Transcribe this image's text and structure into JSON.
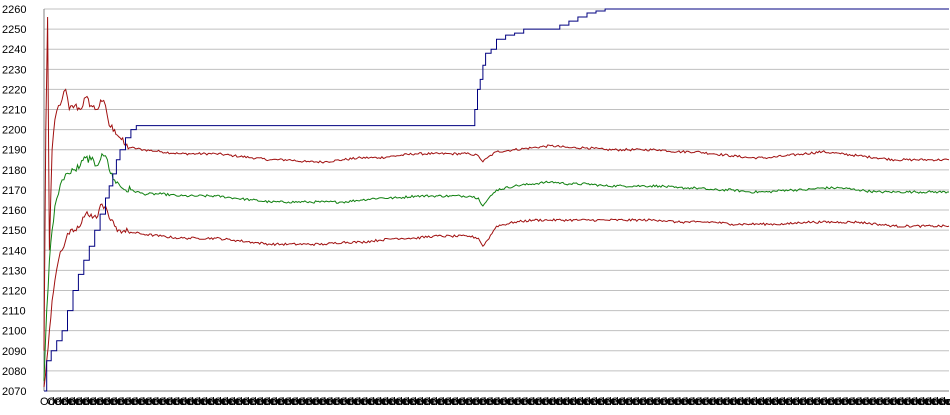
{
  "chart_data": {
    "type": "line",
    "title": "",
    "xlabel": "",
    "ylabel": "",
    "ylim": [
      2070,
      2260
    ],
    "y_ticks": [
      2070,
      2080,
      2090,
      2100,
      2110,
      2120,
      2130,
      2140,
      2150,
      2160,
      2170,
      2180,
      2190,
      2200,
      2210,
      2220,
      2230,
      2240,
      2250,
      2260
    ],
    "grid": "horizontal",
    "legend": "none",
    "x_tick_text": "Odecn",
    "x_tick_count": 130,
    "colors": {
      "upper": "#a01010",
      "middle": "#108010",
      "lower": "#a01010",
      "step": "#000080",
      "grid": "#c0c0c0",
      "axis": "#808080"
    },
    "x_range": [
      0,
      1000
    ],
    "series": [
      {
        "key": "upper",
        "points": [
          [
            0,
            2090
          ],
          [
            2,
            2200
          ],
          [
            4,
            2256
          ],
          [
            6,
            2140
          ],
          [
            9,
            2190
          ],
          [
            12,
            2205
          ],
          [
            16,
            2212
          ],
          [
            20,
            2215
          ],
          [
            24,
            2220
          ],
          [
            28,
            2210
          ],
          [
            34,
            2212
          ],
          [
            40,
            2210
          ],
          [
            46,
            2216
          ],
          [
            52,
            2212
          ],
          [
            58,
            2210
          ],
          [
            64,
            2214
          ],
          [
            68,
            2212
          ],
          [
            72,
            2202
          ],
          [
            78,
            2200
          ],
          [
            84,
            2196
          ],
          [
            90,
            2192
          ],
          [
            96,
            2191
          ],
          [
            110,
            2190
          ],
          [
            130,
            2189
          ],
          [
            150,
            2188
          ],
          [
            170,
            2188
          ],
          [
            190,
            2188
          ],
          [
            210,
            2187
          ],
          [
            230,
            2186
          ],
          [
            250,
            2185
          ],
          [
            270,
            2185
          ],
          [
            290,
            2184
          ],
          [
            310,
            2184
          ],
          [
            330,
            2185
          ],
          [
            350,
            2186
          ],
          [
            370,
            2186
          ],
          [
            390,
            2187
          ],
          [
            410,
            2188
          ],
          [
            430,
            2188
          ],
          [
            450,
            2188
          ],
          [
            470,
            2188
          ],
          [
            480,
            2187
          ],
          [
            485,
            2184
          ],
          [
            490,
            2186
          ],
          [
            500,
            2189
          ],
          [
            520,
            2190
          ],
          [
            540,
            2191
          ],
          [
            560,
            2192
          ],
          [
            580,
            2191
          ],
          [
            600,
            2191
          ],
          [
            620,
            2190
          ],
          [
            640,
            2190
          ],
          [
            660,
            2190
          ],
          [
            680,
            2190
          ],
          [
            700,
            2189
          ],
          [
            720,
            2189
          ],
          [
            740,
            2188
          ],
          [
            760,
            2187
          ],
          [
            780,
            2186
          ],
          [
            800,
            2186
          ],
          [
            820,
            2187
          ],
          [
            840,
            2188
          ],
          [
            860,
            2189
          ],
          [
            880,
            2188
          ],
          [
            900,
            2187
          ],
          [
            920,
            2186
          ],
          [
            940,
            2185
          ],
          [
            960,
            2185
          ],
          [
            980,
            2185
          ],
          [
            1000,
            2185
          ]
        ]
      },
      {
        "key": "middle",
        "points": [
          [
            0,
            2075
          ],
          [
            3,
            2110
          ],
          [
            6,
            2135
          ],
          [
            9,
            2150
          ],
          [
            12,
            2162
          ],
          [
            16,
            2168
          ],
          [
            20,
            2175
          ],
          [
            24,
            2178
          ],
          [
            28,
            2178
          ],
          [
            34,
            2180
          ],
          [
            40,
            2182
          ],
          [
            46,
            2186
          ],
          [
            52,
            2185
          ],
          [
            58,
            2182
          ],
          [
            64,
            2188
          ],
          [
            68,
            2187
          ],
          [
            72,
            2180
          ],
          [
            78,
            2175
          ],
          [
            84,
            2172
          ],
          [
            90,
            2170
          ],
          [
            96,
            2170
          ],
          [
            110,
            2168
          ],
          [
            130,
            2168
          ],
          [
            150,
            2167
          ],
          [
            170,
            2167
          ],
          [
            190,
            2167
          ],
          [
            210,
            2166
          ],
          [
            230,
            2165
          ],
          [
            250,
            2164
          ],
          [
            270,
            2164
          ],
          [
            290,
            2164
          ],
          [
            310,
            2164
          ],
          [
            330,
            2164
          ],
          [
            350,
            2165
          ],
          [
            370,
            2166
          ],
          [
            390,
            2166
          ],
          [
            410,
            2167
          ],
          [
            430,
            2167
          ],
          [
            450,
            2167
          ],
          [
            470,
            2167
          ],
          [
            480,
            2166
          ],
          [
            485,
            2162
          ],
          [
            490,
            2165
          ],
          [
            500,
            2170
          ],
          [
            520,
            2172
          ],
          [
            540,
            2173
          ],
          [
            560,
            2174
          ],
          [
            580,
            2173
          ],
          [
            600,
            2173
          ],
          [
            620,
            2172
          ],
          [
            640,
            2172
          ],
          [
            660,
            2172
          ],
          [
            680,
            2172
          ],
          [
            700,
            2171
          ],
          [
            720,
            2171
          ],
          [
            740,
            2170
          ],
          [
            760,
            2170
          ],
          [
            780,
            2169
          ],
          [
            800,
            2169
          ],
          [
            820,
            2170
          ],
          [
            840,
            2170
          ],
          [
            860,
            2171
          ],
          [
            880,
            2171
          ],
          [
            900,
            2170
          ],
          [
            920,
            2169
          ],
          [
            940,
            2169
          ],
          [
            960,
            2169
          ],
          [
            980,
            2169
          ],
          [
            1000,
            2169
          ]
        ]
      },
      {
        "key": "lower",
        "points": [
          [
            0,
            2072
          ],
          [
            3,
            2085
          ],
          [
            6,
            2100
          ],
          [
            9,
            2115
          ],
          [
            12,
            2125
          ],
          [
            16,
            2135
          ],
          [
            20,
            2140
          ],
          [
            24,
            2145
          ],
          [
            28,
            2148
          ],
          [
            34,
            2150
          ],
          [
            40,
            2152
          ],
          [
            46,
            2158
          ],
          [
            52,
            2158
          ],
          [
            58,
            2156
          ],
          [
            64,
            2163
          ],
          [
            68,
            2162
          ],
          [
            72,
            2156
          ],
          [
            78,
            2152
          ],
          [
            84,
            2150
          ],
          [
            90,
            2149
          ],
          [
            96,
            2149
          ],
          [
            110,
            2148
          ],
          [
            130,
            2147
          ],
          [
            150,
            2146
          ],
          [
            170,
            2146
          ],
          [
            190,
            2146
          ],
          [
            210,
            2145
          ],
          [
            230,
            2144
          ],
          [
            250,
            2143
          ],
          [
            270,
            2143
          ],
          [
            290,
            2143
          ],
          [
            310,
            2143
          ],
          [
            330,
            2144
          ],
          [
            350,
            2144
          ],
          [
            370,
            2145
          ],
          [
            390,
            2146
          ],
          [
            410,
            2146
          ],
          [
            430,
            2147
          ],
          [
            450,
            2147
          ],
          [
            470,
            2147
          ],
          [
            480,
            2146
          ],
          [
            485,
            2142
          ],
          [
            490,
            2145
          ],
          [
            500,
            2152
          ],
          [
            520,
            2154
          ],
          [
            540,
            2155
          ],
          [
            560,
            2155
          ],
          [
            580,
            2155
          ],
          [
            600,
            2155
          ],
          [
            620,
            2155
          ],
          [
            640,
            2155
          ],
          [
            660,
            2155
          ],
          [
            680,
            2155
          ],
          [
            700,
            2154
          ],
          [
            720,
            2154
          ],
          [
            740,
            2154
          ],
          [
            760,
            2153
          ],
          [
            780,
            2153
          ],
          [
            800,
            2153
          ],
          [
            820,
            2153
          ],
          [
            840,
            2154
          ],
          [
            860,
            2154
          ],
          [
            880,
            2154
          ],
          [
            900,
            2154
          ],
          [
            920,
            2153
          ],
          [
            940,
            2152
          ],
          [
            960,
            2152
          ],
          [
            980,
            2152
          ],
          [
            1000,
            2152
          ]
        ]
      },
      {
        "key": "step",
        "points": [
          [
            0,
            2070
          ],
          [
            3,
            2085
          ],
          [
            8,
            2090
          ],
          [
            14,
            2095
          ],
          [
            20,
            2100
          ],
          [
            26,
            2110
          ],
          [
            32,
            2120
          ],
          [
            38,
            2128
          ],
          [
            44,
            2135
          ],
          [
            50,
            2142
          ],
          [
            56,
            2150
          ],
          [
            62,
            2158
          ],
          [
            68,
            2166
          ],
          [
            72,
            2172
          ],
          [
            76,
            2178
          ],
          [
            80,
            2185
          ],
          [
            84,
            2190
          ],
          [
            90,
            2196
          ],
          [
            96,
            2200
          ],
          [
            102,
            2202
          ],
          [
            200,
            2202
          ],
          [
            300,
            2202
          ],
          [
            400,
            2202
          ],
          [
            473,
            2202
          ],
          [
            476,
            2210
          ],
          [
            479,
            2220
          ],
          [
            482,
            2225
          ],
          [
            485,
            2232
          ],
          [
            488,
            2238
          ],
          [
            494,
            2240
          ],
          [
            500,
            2245
          ],
          [
            510,
            2247
          ],
          [
            520,
            2248
          ],
          [
            530,
            2250
          ],
          [
            540,
            2250
          ],
          [
            550,
            2250
          ],
          [
            560,
            2250
          ],
          [
            570,
            2252
          ],
          [
            580,
            2254
          ],
          [
            590,
            2256
          ],
          [
            600,
            2258
          ],
          [
            610,
            2259
          ],
          [
            620,
            2260
          ],
          [
            700,
            2260
          ],
          [
            800,
            2260
          ],
          [
            900,
            2260
          ],
          [
            1000,
            2260
          ]
        ]
      }
    ]
  }
}
